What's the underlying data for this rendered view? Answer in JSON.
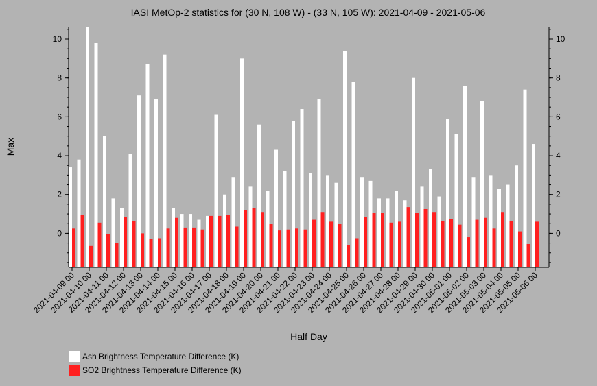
{
  "chart_data": {
    "type": "bar",
    "title": "IASI MetOp-2 statistics for (30 N, 108 W) - (33 N, 105 W): 2021-04-09 - 2021-05-06",
    "xlabel": "Half Day",
    "ylabel": "Max",
    "ylim": [
      -1.75,
      10.6
    ],
    "yticks": [
      0,
      2,
      4,
      6,
      8,
      10
    ],
    "categories": [
      "2021-04-09 00",
      "2021-04-09 12",
      "2021-04-10 00",
      "2021-04-10 12",
      "2021-04-11 00",
      "2021-04-11 12",
      "2021-04-12 00",
      "2021-04-12 12",
      "2021-04-13 00",
      "2021-04-13 12",
      "2021-04-14 00",
      "2021-04-14 12",
      "2021-04-15 00",
      "2021-04-15 12",
      "2021-04-16 00",
      "2021-04-16 12",
      "2021-04-17 00",
      "2021-04-17 12",
      "2021-04-18 00",
      "2021-04-18 12",
      "2021-04-19 00",
      "2021-04-19 12",
      "2021-04-20 00",
      "2021-04-20 12",
      "2021-04-21 00",
      "2021-04-21 12",
      "2021-04-22 00",
      "2021-04-22 12",
      "2021-04-23 00",
      "2021-04-23 12",
      "2021-04-24 00",
      "2021-04-24 12",
      "2021-04-25 00",
      "2021-04-25 12",
      "2021-04-26 00",
      "2021-04-26 12",
      "2021-04-27 00",
      "2021-04-27 12",
      "2021-04-28 00",
      "2021-04-28 12",
      "2021-04-29 00",
      "2021-04-29 12",
      "2021-04-30 00",
      "2021-04-30 12",
      "2021-05-01 00",
      "2021-05-01 12",
      "2021-05-02 00",
      "2021-05-02 12",
      "2021-05-03 00",
      "2021-05-03 12",
      "2021-05-04 00",
      "2021-05-04 12",
      "2021-05-05 00",
      "2021-05-05 12",
      "2021-05-06 00"
    ],
    "tick_labels": [
      "2021-04-09 00",
      "2021-04-10 00",
      "2021-04-11 00",
      "2021-04-12 00",
      "2021-04-13 00",
      "2021-04-14 00",
      "2021-04-15 00",
      "2021-04-16 00",
      "2021-04-17 00",
      "2021-04-18 00",
      "2021-04-19 00",
      "2021-04-20 00",
      "2021-04-21 00",
      "2021-04-22 00",
      "2021-04-23 00",
      "2021-04-24 00",
      "2021-04-25 00",
      "2021-04-26 00",
      "2021-04-27 00",
      "2021-04-28 00",
      "2021-04-29 00",
      "2021-04-30 00",
      "2021-05-01 00",
      "2021-05-02 00",
      "2021-05-03 00",
      "2021-05-04 00",
      "2021-05-05 00",
      "2021-05-06 00"
    ],
    "series": [
      {
        "name": "Ash Brightness Temperature Difference (K)",
        "color": "#ffffff",
        "values": [
          3.4,
          3.8,
          10.6,
          9.8,
          5.0,
          1.8,
          1.3,
          4.1,
          7.1,
          8.7,
          6.9,
          9.2,
          1.3,
          1.0,
          1.0,
          0.7,
          0.9,
          6.1,
          2.0,
          2.9,
          9.0,
          2.4,
          5.6,
          2.2,
          4.3,
          3.2,
          5.8,
          6.4,
          3.1,
          6.9,
          3.0,
          2.6,
          9.4,
          7.8,
          2.9,
          2.7,
          1.8,
          1.8,
          2.2,
          1.7,
          8.0,
          2.4,
          3.3,
          1.9,
          5.9,
          5.1,
          7.6,
          2.9,
          6.8,
          3.0,
          2.3,
          2.5,
          3.5,
          7.4,
          4.6
        ]
      },
      {
        "name": "SO2 Brightness Temperature Difference (K)",
        "color": "#ff2020",
        "values": [
          0.25,
          0.95,
          -0.65,
          0.55,
          -0.05,
          -0.5,
          0.85,
          0.65,
          0.0,
          -0.3,
          -0.25,
          0.25,
          0.8,
          0.3,
          0.3,
          0.2,
          0.9,
          0.9,
          0.95,
          0.35,
          1.2,
          1.3,
          1.1,
          0.5,
          0.15,
          0.2,
          0.25,
          0.2,
          0.7,
          1.1,
          0.6,
          0.5,
          -0.6,
          -0.25,
          0.85,
          1.05,
          1.05,
          0.55,
          0.6,
          1.35,
          1.05,
          1.25,
          1.1,
          0.65,
          0.75,
          0.45,
          -0.2,
          0.7,
          0.8,
          0.25,
          1.1,
          0.65,
          0.1,
          -0.55,
          0.6
        ]
      }
    ],
    "legend": "bottom-left"
  }
}
